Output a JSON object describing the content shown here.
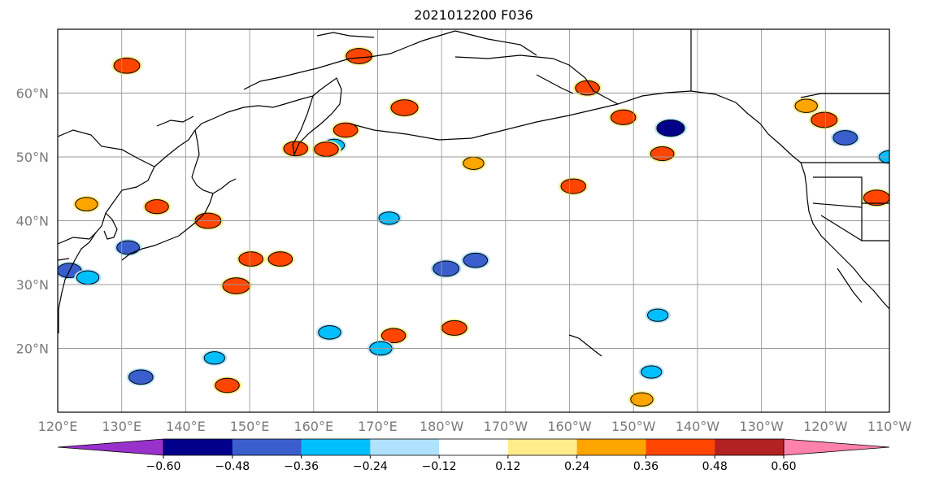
{
  "title": "2021012200 F036",
  "map": {
    "lon_range": [
      120,
      250
    ],
    "lat_range": [
      10,
      70
    ],
    "lat_ticks": [
      {
        "value": 20,
        "label": "20°N"
      },
      {
        "value": 30,
        "label": "30°N"
      },
      {
        "value": 40,
        "label": "40°N"
      },
      {
        "value": 50,
        "label": "50°N"
      },
      {
        "value": 60,
        "label": "60°N"
      }
    ],
    "lon_ticks": [
      {
        "value": 120,
        "label": "120°E"
      },
      {
        "value": 130,
        "label": "130°E"
      },
      {
        "value": 140,
        "label": "140°E"
      },
      {
        "value": 150,
        "label": "150°E"
      },
      {
        "value": 160,
        "label": "160°E"
      },
      {
        "value": 170,
        "label": "170°E"
      },
      {
        "value": 180,
        "label": "180°W"
      },
      {
        "value": 190,
        "label": "170°W"
      },
      {
        "value": 200,
        "label": "160°W"
      },
      {
        "value": 210,
        "label": "150°W"
      },
      {
        "value": 220,
        "label": "140°W"
      },
      {
        "value": 230,
        "label": "130°W"
      },
      {
        "value": 240,
        "label": "120°W"
      },
      {
        "value": 250,
        "label": "110°W"
      }
    ],
    "gridlines": true
  },
  "colorbar": {
    "colors": [
      "#9932cc",
      "#00008b",
      "#3a5fcd",
      "#00bfff",
      "#b0e2ff",
      "#ffffff",
      "#ffec8b",
      "#ffa500",
      "#ff4500",
      "#b22222",
      "#ff82ab"
    ],
    "extend": "both",
    "ticks": [
      {
        "value": "−0.60"
      },
      {
        "value": "−0.48"
      },
      {
        "value": "−0.36"
      },
      {
        "value": "−0.24"
      },
      {
        "value": "−0.12"
      },
      {
        "value": "0.12"
      },
      {
        "value": "0.24"
      },
      {
        "value": "0.36"
      },
      {
        "value": "0.48"
      },
      {
        "value": "0.60"
      }
    ]
  },
  "chart_data": {
    "type": "heatmap",
    "title": "2021012200 F036",
    "xlabel": "",
    "ylabel": "",
    "xlim": [
      120,
      250
    ],
    "ylim": [
      10,
      70
    ],
    "grid": true,
    "levels": [
      -0.6,
      -0.48,
      -0.36,
      -0.24,
      -0.12,
      0.12,
      0.24,
      0.36,
      0.48,
      0.6
    ],
    "features": [
      {
        "lon": 130.8,
        "lat": 64.3,
        "value": 0.45
      },
      {
        "lon": 167.1,
        "lat": 65.8,
        "value": 0.45
      },
      {
        "lon": 174.2,
        "lat": 57.7,
        "value": 0.48
      },
      {
        "lon": 202.8,
        "lat": 60.8,
        "value": 0.4
      },
      {
        "lon": 215.8,
        "lat": 54.5,
        "value": -0.5
      },
      {
        "lon": 208.4,
        "lat": 56.2,
        "value": 0.42
      },
      {
        "lon": 239.8,
        "lat": 55.8,
        "value": 0.45
      },
      {
        "lon": 243.1,
        "lat": 53.0,
        "value": -0.4
      },
      {
        "lon": 250.0,
        "lat": 50.0,
        "value": -0.3
      },
      {
        "lon": 248.0,
        "lat": 43.6,
        "value": 0.45
      },
      {
        "lon": 165.0,
        "lat": 54.2,
        "value": 0.4
      },
      {
        "lon": 163.2,
        "lat": 51.8,
        "value": -0.3
      },
      {
        "lon": 157.2,
        "lat": 51.3,
        "value": 0.4
      },
      {
        "lon": 162.0,
        "lat": 51.2,
        "value": 0.4
      },
      {
        "lon": 200.6,
        "lat": 45.4,
        "value": 0.42
      },
      {
        "lon": 124.5,
        "lat": 42.6,
        "value": 0.35
      },
      {
        "lon": 135.5,
        "lat": 42.2,
        "value": 0.38
      },
      {
        "lon": 143.5,
        "lat": 40.0,
        "value": 0.45
      },
      {
        "lon": 131.0,
        "lat": 35.8,
        "value": -0.36
      },
      {
        "lon": 121.8,
        "lat": 32.2,
        "value": -0.4
      },
      {
        "lon": 124.7,
        "lat": 31.1,
        "value": -0.35
      },
      {
        "lon": 150.2,
        "lat": 34.0,
        "value": 0.4
      },
      {
        "lon": 154.8,
        "lat": 34.0,
        "value": 0.4
      },
      {
        "lon": 147.9,
        "lat": 29.8,
        "value": 0.48
      },
      {
        "lon": 180.7,
        "lat": 32.5,
        "value": -0.45
      },
      {
        "lon": 185.3,
        "lat": 33.8,
        "value": -0.4
      },
      {
        "lon": 162.5,
        "lat": 22.5,
        "value": -0.35
      },
      {
        "lon": 172.5,
        "lat": 22.0,
        "value": 0.4
      },
      {
        "lon": 182.0,
        "lat": 23.2,
        "value": 0.42
      },
      {
        "lon": 171.8,
        "lat": 40.4,
        "value": -0.3
      },
      {
        "lon": 133.0,
        "lat": 15.5,
        "value": -0.4
      },
      {
        "lon": 144.5,
        "lat": 18.5,
        "value": -0.3
      },
      {
        "lon": 146.5,
        "lat": 14.2,
        "value": 0.4
      },
      {
        "lon": 170.5,
        "lat": 20.0,
        "value": -0.35
      },
      {
        "lon": 212.8,
        "lat": 16.3,
        "value": -0.3
      },
      {
        "lon": 211.3,
        "lat": 12.0,
        "value": 0.35
      },
      {
        "lon": 213.8,
        "lat": 25.2,
        "value": -0.3
      },
      {
        "lon": 214.5,
        "lat": 50.5,
        "value": 0.38
      },
      {
        "lon": 185.0,
        "lat": 49.0,
        "value": 0.3
      },
      {
        "lon": 237.0,
        "lat": 58.0,
        "value": 0.35
      }
    ]
  }
}
